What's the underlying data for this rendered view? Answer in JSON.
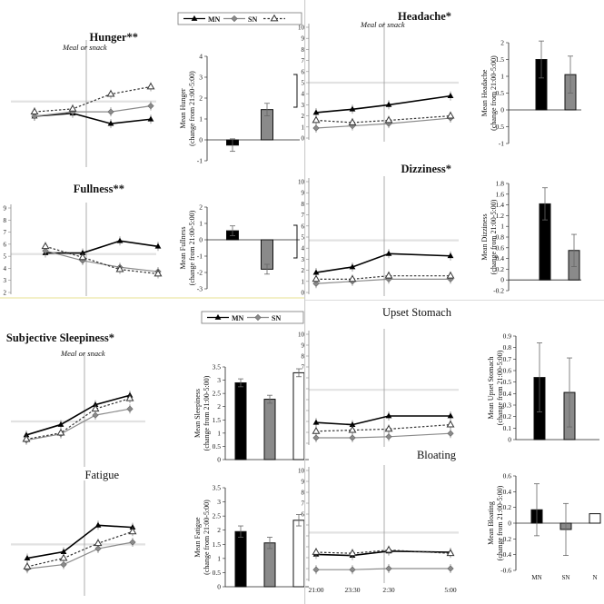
{
  "legend_top": {
    "items": [
      "MN",
      "SN",
      ""
    ]
  },
  "legend_mid": {
    "items": [
      "MN",
      "SN",
      ""
    ]
  },
  "xaxis_bottom": {
    "ticks": [
      "21:00",
      "23:30",
      "2:30",
      "5:00"
    ]
  },
  "bar_xaxis_bottom": {
    "ticks": [
      "MN",
      "SN",
      "N"
    ]
  },
  "meal_label": "Meal or snack",
  "colors": {
    "MN": "#000000",
    "SN": "#8a8a8a",
    "N": "#ffffff"
  },
  "chart_data": [
    {
      "id": "hunger",
      "title": "Hunger**",
      "type": "line",
      "meal_label": true,
      "series": [
        {
          "name": "MN",
          "values": [
            3.2,
            3.4,
            2.7,
            3.0
          ]
        },
        {
          "name": "SN",
          "values": [
            3.2,
            3.5,
            3.5,
            3.9
          ]
        },
        {
          "name": "",
          "values": [
            3.5,
            3.7,
            4.7,
            5.2
          ]
        }
      ],
      "baseline": 4.2,
      "ylim": [
        0,
        8
      ],
      "yticks": []
    },
    {
      "id": "hunger_bar",
      "type": "bar",
      "ylabel": "Mean Hunger (change from 21:00-5:00)",
      "ylim": [
        -1,
        4
      ],
      "yticks": [
        -1,
        0,
        1,
        2,
        3,
        4
      ],
      "values": [
        -0.25,
        1.45,
        0
      ],
      "errors": [
        0.3,
        0.3,
        0
      ],
      "right_bracket": true
    },
    {
      "id": "fullness",
      "title": "Fullness**",
      "type": "line",
      "series": [
        {
          "name": "MN",
          "values": [
            5.1,
            5.1,
            6.2,
            5.7
          ]
        },
        {
          "name": "SN",
          "values": [
            5.3,
            4.4,
            3.8,
            3.4
          ]
        },
        {
          "name": "",
          "values": [
            5.7,
            4.7,
            3.6,
            3.2
          ]
        }
      ],
      "baseline": 5.0,
      "ylim": [
        1.5,
        9.2
      ],
      "yticks": [
        "9",
        "8",
        "7",
        "6",
        "5",
        "4",
        "3",
        "2"
      ]
    },
    {
      "id": "fullness_bar",
      "type": "bar",
      "ylabel": "Mean Fullness (change from 21:00-5:00)",
      "ylim": [
        -3,
        2
      ],
      "yticks": [
        -3,
        -2,
        -1,
        0,
        1,
        2
      ],
      "values": [
        0.55,
        -1.8,
        0
      ],
      "errors": [
        0.3,
        0.3,
        0
      ],
      "right_bracket": true
    },
    {
      "id": "headache",
      "title": "Headache*",
      "type": "line",
      "meal_label": true,
      "series": [
        {
          "name": "MN",
          "values": [
            2.3,
            2.6,
            3.0,
            3.8
          ]
        },
        {
          "name": "SN",
          "values": [
            0.9,
            1.1,
            1.3,
            1.8
          ]
        },
        {
          "name": "",
          "values": [
            1.6,
            1.4,
            1.6,
            2.0
          ]
        }
      ],
      "baseline": 5.0,
      "ylim": [
        0,
        10
      ],
      "yticks": [
        "0",
        "1",
        "2",
        "3",
        "4",
        "5",
        "6",
        "7",
        "8",
        "9",
        "10"
      ]
    },
    {
      "id": "headache_bar",
      "type": "bar",
      "ylabel": "Mean Headache (change from 21:00-5:00)",
      "ylim": [
        -1,
        2
      ],
      "yticks": [
        -1,
        -0.5,
        0,
        0.5,
        1,
        1.5,
        2
      ],
      "values": [
        1.5,
        1.05
      ],
      "errors": [
        0.55,
        0.55
      ]
    },
    {
      "id": "dizziness",
      "title": "Dizziness*",
      "type": "line",
      "series": [
        {
          "name": "MN",
          "values": [
            1.8,
            2.3,
            3.5,
            3.3
          ]
        },
        {
          "name": "SN",
          "values": [
            0.8,
            1.0,
            1.2,
            1.2
          ]
        },
        {
          "name": "",
          "values": [
            1.2,
            1.2,
            1.5,
            1.5
          ]
        }
      ],
      "baseline": 4.7,
      "ylim": [
        0,
        10
      ],
      "yticks": [
        "0",
        "1",
        "2",
        "3",
        "4",
        "5",
        "6",
        "7",
        "8",
        "9",
        "10"
      ]
    },
    {
      "id": "dizziness_bar",
      "type": "bar",
      "ylabel": "Mean Dizziness (change from 21:00-5:00)",
      "ylim": [
        -0.2,
        1.8
      ],
      "yticks": [
        -0.2,
        0,
        0.2,
        0.4,
        0.6,
        0.8,
        1,
        1.2,
        1.4,
        1.6,
        1.8
      ],
      "values": [
        1.42,
        0.55
      ],
      "errors": [
        0.3,
        0.3
      ]
    },
    {
      "id": "sleepiness",
      "title": "Subjective Sleepiness*",
      "type": "line",
      "meal_label": true,
      "series": [
        {
          "name": "MN",
          "values": [
            2.7,
            3.7,
            5.6,
            6.5
          ]
        },
        {
          "name": "SN",
          "values": [
            2.2,
            2.8,
            4.6,
            5.2
          ]
        },
        {
          "name": "",
          "values": [
            2.3,
            2.9,
            5.2,
            6.2
          ]
        }
      ],
      "baseline": 4.0,
      "ylim": [
        0,
        10
      ],
      "yticks": []
    },
    {
      "id": "sleepiness_bar",
      "type": "bar",
      "ylabel": "Mean Sleepiness (change from 21:00-5:00)",
      "ylim": [
        0,
        3.5
      ],
      "yticks": [
        0,
        0.5,
        1,
        1.5,
        2,
        2.5,
        3,
        3.5
      ],
      "values": [
        2.9,
        2.28,
        3.28
      ],
      "errors": [
        0.15,
        0.15,
        0.15
      ]
    },
    {
      "id": "fatigue",
      "title": "Fatigue",
      "type": "line",
      "series": [
        {
          "name": "MN",
          "values": [
            3.2,
            3.8,
            6.3,
            6.1
          ]
        },
        {
          "name": "SN",
          "values": [
            2.2,
            2.6,
            4.1,
            4.7
          ]
        },
        {
          "name": "",
          "values": [
            2.4,
            3.2,
            4.6,
            5.7
          ]
        }
      ],
      "baseline": 4.5,
      "ylim": [
        0,
        10
      ],
      "yticks": []
    },
    {
      "id": "fatigue_bar",
      "type": "bar",
      "ylabel": "Mean Fatigue (change from 21:00-5:00)",
      "ylim": [
        0,
        3.5
      ],
      "yticks": [
        0,
        0.5,
        1,
        1.5,
        2,
        2.5,
        3,
        3.5
      ],
      "values": [
        1.95,
        1.55,
        2.35
      ],
      "errors": [
        0.2,
        0.2,
        0.2
      ]
    },
    {
      "id": "upset",
      "title": "Upset Stomach",
      "type": "line",
      "series": [
        {
          "name": "MN",
          "values": [
            1.9,
            1.7,
            2.5,
            2.5
          ]
        },
        {
          "name": "SN",
          "values": [
            0.5,
            0.5,
            0.6,
            0.9
          ]
        },
        {
          "name": "",
          "values": [
            1.1,
            1.2,
            1.3,
            1.7
          ]
        }
      ],
      "baseline": 4.9,
      "ylim": [
        0,
        10
      ],
      "yticks": [
        "0",
        "1",
        "2",
        "3",
        "4",
        "5",
        "6",
        "7",
        "8",
        "9",
        "10"
      ]
    },
    {
      "id": "upset_bar",
      "type": "bar",
      "ylabel": "Mean Upset Stomach (change from 21:00-5:00)",
      "ylim": [
        0,
        0.9
      ],
      "yticks": [
        0,
        0.1,
        0.2,
        0.3,
        0.4,
        0.5,
        0.6,
        0.7,
        0.8,
        0.9
      ],
      "values": [
        0.54,
        0.41
      ],
      "errors": [
        0.3,
        0.3
      ]
    },
    {
      "id": "bloating",
      "title": "Bloating",
      "type": "line",
      "series": [
        {
          "name": "MN",
          "values": [
            2.3,
            2.2,
            2.6,
            2.5
          ]
        },
        {
          "name": "SN",
          "values": [
            0.9,
            0.9,
            1.0,
            1.0
          ]
        },
        {
          "name": "",
          "values": [
            2.5,
            2.4,
            2.7,
            2.4
          ]
        }
      ],
      "baseline": 4.3,
      "ylim": [
        0,
        10
      ],
      "yticks": [
        "0",
        "1",
        "2",
        "3",
        "4",
        "5",
        "6",
        "7",
        "8",
        "9",
        "10"
      ],
      "xticks": true
    },
    {
      "id": "bloating_bar",
      "type": "bar",
      "ylabel": "Mean Bloating (change from 21:00-5:00)",
      "ylim": [
        -0.6,
        0.6
      ],
      "yticks": [
        -0.6,
        -0.4,
        -0.2,
        0,
        0.2,
        0.4,
        0.6
      ],
      "values": [
        0.17,
        -0.08,
        0.12
      ],
      "errors": [
        0.33,
        0.33,
        0
      ],
      "xticks": true
    }
  ]
}
